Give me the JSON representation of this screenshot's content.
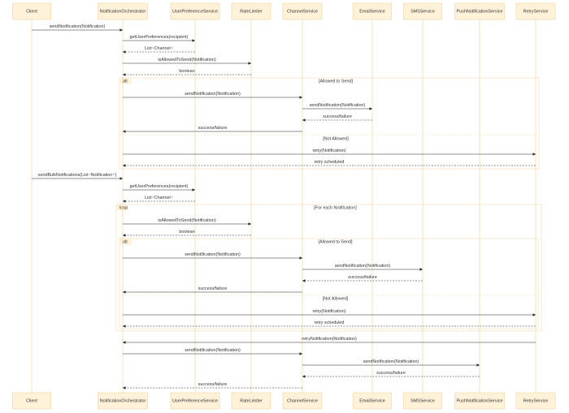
{
  "participants": [
    "Client",
    "NotificationOrchestrator",
    "UserPreferenceService",
    "RateLimiter",
    "ChannelService",
    "EmailService",
    "SMSService",
    "PushNotificationService",
    "RetryService"
  ],
  "messages": [
    {
      "from": "Client",
      "to": "NotificationOrchestrator",
      "label": "sendNotification(Notification)",
      "line": "solid"
    },
    {
      "from": "NotificationOrchestrator",
      "to": "UserPreferenceService",
      "label": "getUserPreferences(recipient)",
      "line": "solid"
    },
    {
      "from": "UserPreferenceService",
      "to": "NotificationOrchestrator",
      "label": "List~Channel~",
      "line": "dashed"
    },
    {
      "from": "NotificationOrchestrator",
      "to": "RateLimiter",
      "label": "isAllowedToSend(Notification)",
      "line": "solid"
    },
    {
      "from": "RateLimiter",
      "to": "NotificationOrchestrator",
      "label": "boolean",
      "line": "dashed"
    },
    {
      "from": "NotificationOrchestrator",
      "to": "ChannelService",
      "label": "sendNotification(Notification)",
      "line": "solid"
    },
    {
      "from": "ChannelService",
      "to": "EmailService",
      "label": "sendNotification(Notification)",
      "line": "solid"
    },
    {
      "from": "EmailService",
      "to": "ChannelService",
      "label": "success/failure",
      "line": "dashed"
    },
    {
      "from": "ChannelService",
      "to": "NotificationOrchestrator",
      "label": "success/failure",
      "line": "solid"
    },
    {
      "from": "NotificationOrchestrator",
      "to": "RetryService",
      "label": "retry(Notification)",
      "line": "solid"
    },
    {
      "from": "RetryService",
      "to": "NotificationOrchestrator",
      "label": "retry scheduled",
      "line": "dashed"
    },
    {
      "from": "Client",
      "to": "NotificationOrchestrator",
      "label": "sendBulkNotifications(List~Notification~)",
      "line": "solid"
    },
    {
      "from": "NotificationOrchestrator",
      "to": "UserPreferenceService",
      "label": "getUserPreferences(recipient)",
      "line": "solid"
    },
    {
      "from": "UserPreferenceService",
      "to": "NotificationOrchestrator",
      "label": "List~Channel~",
      "line": "dashed"
    },
    {
      "from": "NotificationOrchestrator",
      "to": "RateLimiter",
      "label": "isAllowedToSend(Notification)",
      "line": "solid"
    },
    {
      "from": "RateLimiter",
      "to": "NotificationOrchestrator",
      "label": "boolean",
      "line": "dashed"
    },
    {
      "from": "NotificationOrchestrator",
      "to": "ChannelService",
      "label": "sendNotification(Notification)",
      "line": "solid"
    },
    {
      "from": "ChannelService",
      "to": "SMSService",
      "label": "sendNotification(Notification)",
      "line": "solid"
    },
    {
      "from": "SMSService",
      "to": "ChannelService",
      "label": "success/failure",
      "line": "dashed"
    },
    {
      "from": "ChannelService",
      "to": "NotificationOrchestrator",
      "label": "success/failure",
      "line": "solid"
    },
    {
      "from": "NotificationOrchestrator",
      "to": "RetryService",
      "label": "retry(Notification)",
      "line": "solid"
    },
    {
      "from": "RetryService",
      "to": "NotificationOrchestrator",
      "label": "retry scheduled",
      "line": "dashed"
    },
    {
      "from": "RetryService",
      "to": "NotificationOrchestrator",
      "label": "retryNotification(Notification)",
      "line": "solid"
    },
    {
      "from": "NotificationOrchestrator",
      "to": "ChannelService",
      "label": "sendNotification(Notification)",
      "line": "solid"
    },
    {
      "from": "ChannelService",
      "to": "PushNotificationService",
      "label": "sendNotification(Notification)",
      "line": "solid"
    },
    {
      "from": "PushNotificationService",
      "to": "ChannelService",
      "label": "success/failure",
      "line": "dashed"
    },
    {
      "from": "ChannelService",
      "to": "NotificationOrchestrator",
      "label": "success/failure",
      "line": "dashed"
    }
  ],
  "fragments": [
    {
      "operator": "alt",
      "sections": [
        "[Allowed to Send]",
        "[Not Allowed]"
      ]
    },
    {
      "operator": "loop",
      "sections": [
        "[For each Notification]"
      ]
    },
    {
      "operator": "alt",
      "sections": [
        "[Allowed to Send]",
        "[Not Allowed]"
      ]
    }
  ]
}
